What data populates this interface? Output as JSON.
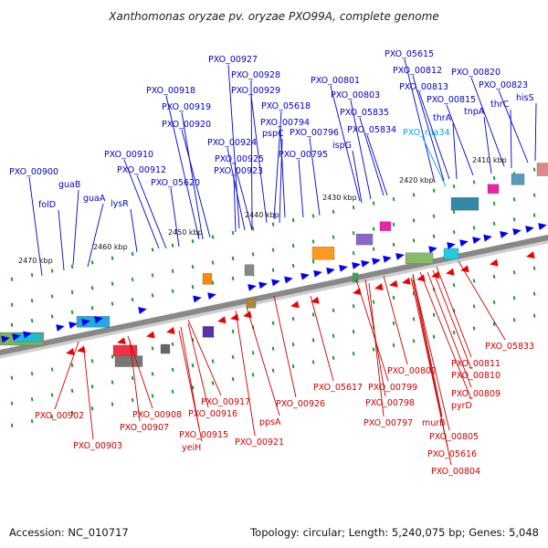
{
  "title": "Xanthomonas oryzae pv. oryzae PXO99A, complete genome",
  "footer": {
    "accession": "Accession: NC_010717",
    "summary": "Topology: circular; Length: 5,240,075 bp; Genes: 5,048"
  },
  "colors": {
    "top_labels": "#0000cc",
    "bottom_labels": "#cc0000",
    "rna_label": "#00aadd",
    "backbone": "#888888",
    "tick": "#229933",
    "plus_gene": "#0000ee",
    "minus_gene": "#ee0000"
  },
  "scale_ticks": [
    "2410 kbp",
    "2420 kbp",
    "2430 kbp",
    "2440 kbp",
    "2450 kbp",
    "2460 kbp",
    "2470 kbp"
  ],
  "top_labels": [
    "PXO_00927",
    "PXO_00928",
    "PXO_00929",
    "PXO_05618",
    "PXO_00794",
    "PXO_00796",
    "PXO_00795",
    "PXO_00918",
    "PXO_00919",
    "PXO_00920",
    "pspC",
    "PXO_00924",
    "PXO_00925",
    "PXO_00923",
    "PXO_00910",
    "PXO_00912",
    "PXO_05620",
    "PXO_00900",
    "guaB",
    "folD",
    "guaA",
    "lysR",
    "PXO_05615",
    "PXO_00812",
    "PXO_00801",
    "PXO_00803",
    "PXO_00813",
    "PXO_00815",
    "PXO_05835",
    "PXO_05834",
    "ispG",
    "PXO_rna34",
    "thrA",
    "tnpA",
    "PXO_00820",
    "PXO_00823",
    "thrC",
    "hisS"
  ],
  "bottom_labels": [
    "PXO_00902",
    "PXO_00903",
    "PXO_00908",
    "PXO_00907",
    "PXO_00917",
    "PXO_00916",
    "PXO_00915",
    "yeiH",
    "PXO_00921",
    "ppsA",
    "PXO_00926",
    "PXO_05617",
    "PXO_00799",
    "PXO_00798",
    "PXO_00797",
    "PXO_00802",
    "PXO_00811",
    "PXO_00810",
    "PXO_00809",
    "pyrD",
    "murB",
    "PXO_00805",
    "PXO_05616",
    "PXO_00804",
    "PXO_05833"
  ]
}
